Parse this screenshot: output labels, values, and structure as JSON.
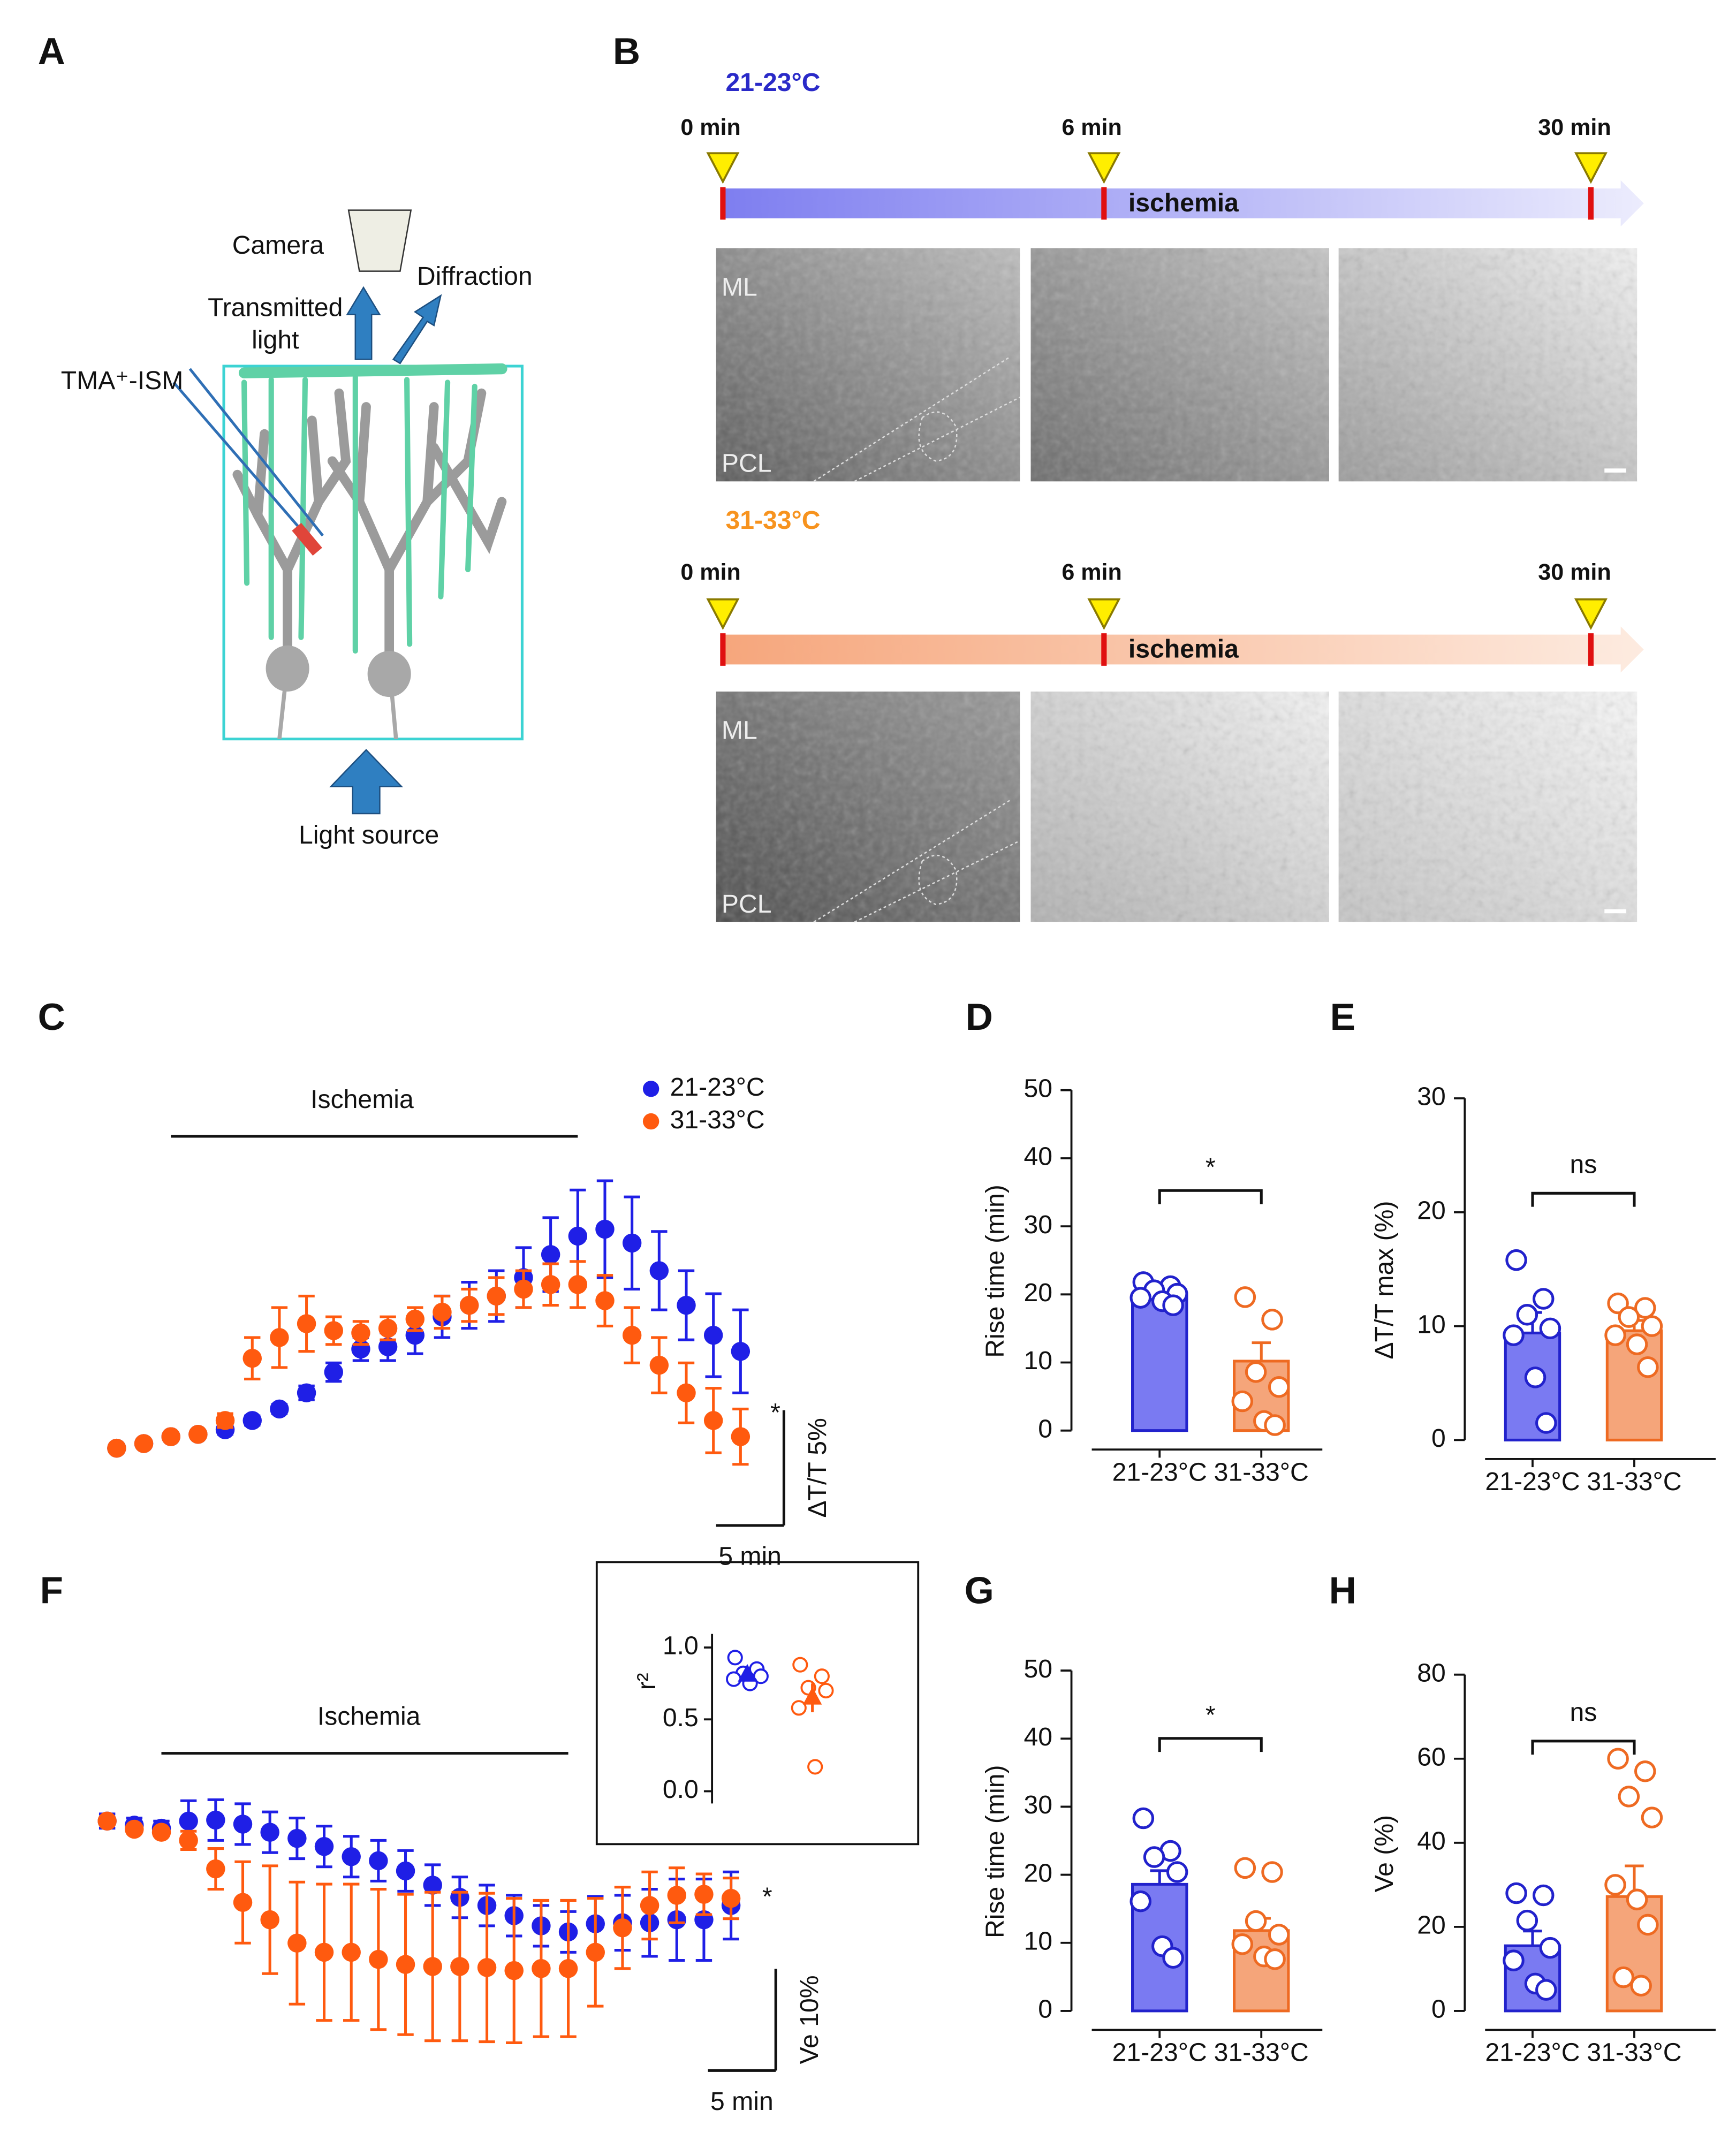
{
  "panel_labels": [
    "A",
    "B",
    "C",
    "D",
    "E",
    "F",
    "G",
    "H"
  ],
  "diagram_a": {
    "camera": "Camera",
    "diffraction": "Diffraction",
    "transmitted_light": [
      "Transmitted",
      "light"
    ],
    "electrode": "TMA⁺-ISM",
    "light_source": "Light source"
  },
  "imaging_b": {
    "conditions": [
      {
        "title": "21-23°C",
        "times": [
          "0 min",
          "6 min",
          "30 min"
        ],
        "phase": "ischemia",
        "regions": [
          "ML",
          "PCL"
        ]
      },
      {
        "title": "31-33°C",
        "times": [
          "0 min",
          "6 min",
          "30 min"
        ],
        "phase": "ischemia",
        "regions": [
          "ML",
          "PCL"
        ]
      }
    ]
  },
  "chart_data": [
    {
      "type": "scatter",
      "x": [
        0,
        2,
        4,
        6,
        8,
        10,
        12,
        14,
        16,
        18,
        20,
        22,
        24,
        26,
        28,
        30,
        32,
        34,
        36,
        38,
        40,
        42,
        44,
        46
      ],
      "xlim": [
        0,
        46
      ],
      "ylim": [
        0,
        10
      ],
      "series": [
        {
          "name": "21-23°C",
          "color": "#1f1fe6",
          "values": [
            0,
            0.2,
            0.5,
            0.6,
            0.8,
            1.2,
            1.7,
            2.4,
            3.3,
            4.3,
            4.4,
            4.9,
            5.7,
            6.2,
            6.6,
            7.4,
            8.4,
            9.2,
            9.5,
            8.9,
            7.7,
            6.2,
            4.9,
            4.2
          ],
          "errors": [
            0,
            0,
            0,
            0,
            0.2,
            0.2,
            0.2,
            0.3,
            0.4,
            0.5,
            0.6,
            0.8,
            0.9,
            1,
            1.1,
            1.3,
            1.6,
            2,
            2.1,
            2,
            1.7,
            1.5,
            1.8,
            1.8
          ]
        },
        {
          "name": "31-33°C",
          "color": "#ff5a0f",
          "values": [
            0,
            0.2,
            0.5,
            0.6,
            1.2,
            3.9,
            4.8,
            5.4,
            5.1,
            5,
            5.2,
            5.6,
            5.9,
            6.2,
            6.6,
            6.9,
            7.1,
            7.1,
            6.4,
            4.9,
            3.6,
            2.4,
            1.2,
            0.5
          ],
          "errors": [
            0,
            0,
            0,
            0,
            0.3,
            0.9,
            1.3,
            1.2,
            0.6,
            0.5,
            0.5,
            0.5,
            0.7,
            0.7,
            0.8,
            0.8,
            0.9,
            1,
            1.1,
            1.2,
            1.2,
            1.3,
            1.4,
            1.2
          ]
        }
      ],
      "annotations": {
        "ischemia": {
          "label": "Ischemia",
          "start": 4,
          "end": 34
        },
        "significance": "*",
        "scale_x": {
          "label": "5 min",
          "length": 5
        },
        "scale_y": {
          "label": "ΔT/T 5%",
          "length": 5
        }
      }
    },
    {
      "type": "bar",
      "ylabel": "Rise time (min)",
      "categories": [
        "21-23°C",
        "31-33°C"
      ],
      "ylim": [
        0,
        50
      ],
      "yticks": [
        0,
        10,
        20,
        30,
        40,
        50
      ],
      "values": [
        19.8,
        10.2
      ],
      "errors": [
        0.8,
        2.7
      ],
      "colors": [
        "#7a7af2",
        "#f5a57a"
      ],
      "edge_colors": [
        "#2222cc",
        "#ee6a22"
      ],
      "points": [
        [
          21.8,
          21.2,
          20.6,
          20.1,
          19.5,
          19,
          18.4
        ],
        [
          19.6,
          16.3,
          8.6,
          6.4,
          4.3,
          1.4,
          0.8
        ]
      ],
      "significance": "*"
    },
    {
      "type": "bar",
      "ylabel": "ΔT/T max (%)",
      "categories": [
        "21-23°C",
        "31-33°C"
      ],
      "ylim": [
        0,
        30
      ],
      "yticks": [
        0,
        10,
        20,
        30
      ],
      "values": [
        9.4,
        9.6
      ],
      "errors": [
        1.8,
        0.9
      ],
      "colors": [
        "#7a7af2",
        "#f5a57a"
      ],
      "edge_colors": [
        "#2222cc",
        "#ee6a22"
      ],
      "points": [
        [
          15.8,
          12.4,
          11,
          9.8,
          9.2,
          5.5,
          1.5
        ],
        [
          12,
          11.6,
          10.8,
          10,
          9.2,
          8.4,
          6.4
        ]
      ],
      "significance": "ns"
    },
    {
      "type": "scatter",
      "x": [
        0,
        2,
        4,
        6,
        8,
        10,
        12,
        14,
        16,
        18,
        20,
        22,
        24,
        26,
        28,
        30,
        32,
        34,
        36,
        38,
        40,
        42,
        44,
        46
      ],
      "xlim": [
        0,
        46
      ],
      "ylim": [
        -20,
        0
      ],
      "series": [
        {
          "name": "21-23°C",
          "color": "#1f1fe6",
          "values": [
            0,
            -0.4,
            -0.7,
            0,
            0.1,
            -0.3,
            -1.1,
            -1.7,
            -2.5,
            -3.5,
            -3.9,
            -4.9,
            -6.3,
            -7.5,
            -8.3,
            -9.3,
            -10.3,
            -10.9,
            -10.1,
            -10,
            -10,
            -9.7,
            -9.7,
            -8.3
          ],
          "errors": [
            0.7,
            0.7,
            0.7,
            2,
            2,
            2,
            2,
            2,
            2,
            2,
            2,
            2,
            2,
            2,
            2,
            2,
            2,
            2,
            2.7,
            2.7,
            3.3,
            4,
            4,
            3.3
          ]
        },
        {
          "name": "31-33°C",
          "color": "#ff5a0f",
          "values": [
            0,
            -0.8,
            -1.1,
            -1.9,
            -4.7,
            -8,
            -9.7,
            -12,
            -12.9,
            -12.9,
            -13.6,
            -14.1,
            -14.3,
            -14.3,
            -14.4,
            -14.7,
            -14.5,
            -14.5,
            -12.9,
            -10.5,
            -8.3,
            -7.3,
            -7.2,
            -7.6
          ],
          "errors": [
            0,
            0,
            0,
            0.9,
            2,
            4,
            5.3,
            6,
            6.7,
            6.7,
            6.9,
            6.9,
            7.3,
            7.3,
            7.3,
            7.1,
            6.7,
            6.7,
            5.3,
            4,
            3.3,
            2.7,
            2,
            2
          ]
        }
      ],
      "annotations": {
        "ischemia": {
          "label": "Ischemia",
          "start": 4,
          "end": 34
        },
        "significance": "*",
        "scale_x": {
          "label": "5 min",
          "length": 5
        },
        "scale_y": {
          "label": "Ve 10%",
          "length": 10
        }
      }
    },
    {
      "type": "dotplot",
      "ylabel": "r²",
      "ylim": [
        0,
        1
      ],
      "yticks": [
        {
          "value": 0,
          "label": "0.0"
        },
        0.5,
        {
          "value": 1,
          "label": "1.0"
        }
      ],
      "series": [
        {
          "color": "#1f1fe6",
          "values": [
            0.93,
            0.85,
            0.82,
            0.8,
            0.78,
            0.75
          ],
          "mean": 0.81,
          "error": 0.03
        },
        {
          "color": "#ff5a0f",
          "values": [
            0.88,
            0.8,
            0.72,
            0.7,
            0.58,
            0.17
          ],
          "mean": 0.65,
          "error": 0.1
        }
      ]
    },
    {
      "type": "bar",
      "ylabel": "Rise time (min)",
      "categories": [
        "21-23°C",
        "31-33°C"
      ],
      "ylim": [
        0,
        50
      ],
      "yticks": [
        0,
        10,
        20,
        30,
        40,
        50
      ],
      "values": [
        18.6,
        11.8
      ],
      "errors": [
        2,
        1.8
      ],
      "colors": [
        "#7a7af2",
        "#f5a57a"
      ],
      "edge_colors": [
        "#2222cc",
        "#ee6a22"
      ],
      "points": [
        [
          28.3,
          23.5,
          22.6,
          20.4,
          16.1,
          9.5,
          7.8
        ],
        [
          21,
          20.4,
          13.2,
          11.2,
          9.8,
          8,
          7.6
        ]
      ],
      "significance": "*"
    },
    {
      "type": "bar",
      "ylabel": "Ve (%)",
      "categories": [
        "21-23°C",
        "31-33°C"
      ],
      "ylim": [
        0,
        80
      ],
      "yticks": [
        0,
        20,
        40,
        60,
        80
      ],
      "values": [
        15.5,
        27.2
      ],
      "errors": [
        3.5,
        7.3
      ],
      "colors": [
        "#7a7af2",
        "#f5a57a"
      ],
      "edge_colors": [
        "#2222cc",
        "#ee6a22"
      ],
      "points": [
        [
          28,
          27.5,
          21.5,
          15,
          12,
          6.5,
          5
        ],
        [
          60,
          57,
          51,
          46,
          30,
          26.5,
          20.5,
          8,
          6
        ]
      ],
      "significance": "ns"
    }
  ]
}
